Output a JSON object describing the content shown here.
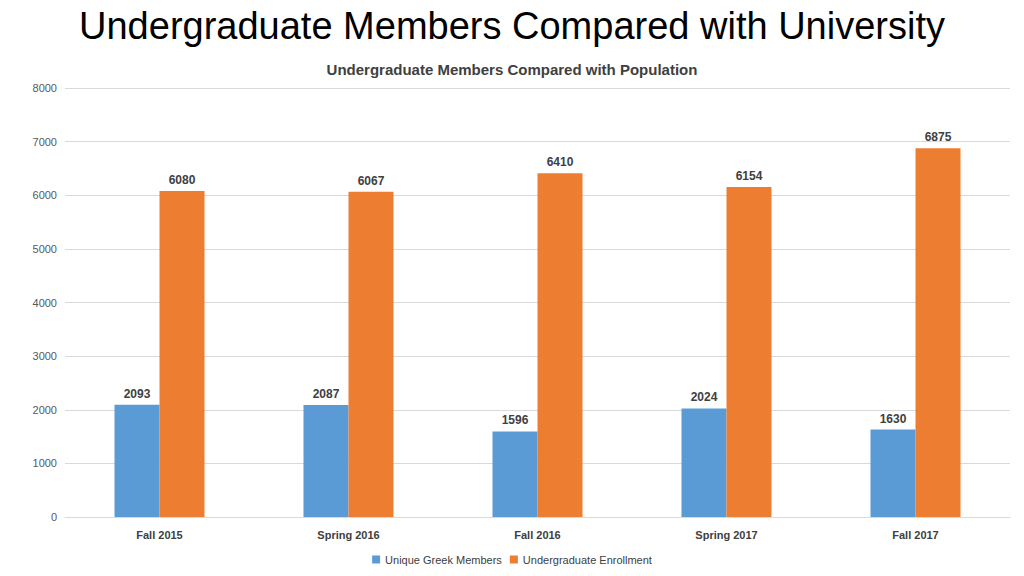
{
  "chart_data": {
    "type": "bar",
    "title": "Undergraduate Members Compared with University",
    "subtitle": "Undergraduate Members Compared with Population",
    "categories": [
      "Fall 2015",
      "Spring 2016",
      "Fall 2016",
      "Spring 2017",
      "Fall 2017"
    ],
    "series": [
      {
        "name": "Unique Greek Members",
        "color": "#5b9bd5",
        "values": [
          2093,
          2087,
          1596,
          2024,
          1630
        ]
      },
      {
        "name": "Undergraduate Enrollment",
        "color": "#ed7d31",
        "values": [
          6080,
          6067,
          6410,
          6154,
          6875
        ]
      }
    ],
    "ylim": [
      0,
      8000
    ],
    "yticks": [
      0,
      1000,
      2000,
      3000,
      4000,
      5000,
      6000,
      7000,
      8000
    ],
    "grid": true,
    "legend": "bottom",
    "data_labels": true
  }
}
